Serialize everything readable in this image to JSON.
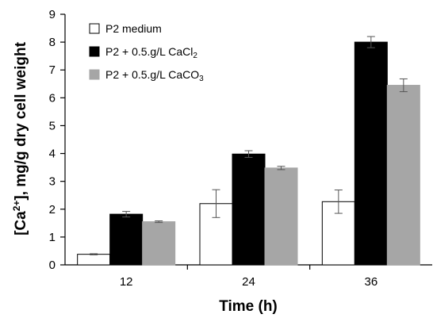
{
  "chart_data": {
    "type": "bar",
    "categories": [
      "12",
      "24",
      "36"
    ],
    "xlabel": "Time (h)",
    "ylabel": "[Ca2+], mg/g dry cell weight",
    "ylim": [
      0,
      9
    ],
    "yticks": [
      0,
      1,
      2,
      3,
      4,
      5,
      6,
      7,
      8,
      9
    ],
    "grid": false,
    "legend": "top-left",
    "series": [
      {
        "name": "P2 medium",
        "color": "#ffffff",
        "values": [
          0.38,
          2.2,
          2.27
        ],
        "errors": [
          0.02,
          0.5,
          0.42
        ]
      },
      {
        "name": "P2 + 0.5.g/L CaCl2",
        "color": "#000000",
        "values": [
          1.82,
          3.98,
          8.0
        ],
        "errors": [
          0.1,
          0.12,
          0.2
        ]
      },
      {
        "name": "P2 + 0.5.g/L CaCO3",
        "color": "#a6a6a6",
        "values": [
          1.55,
          3.48,
          6.45
        ],
        "errors": [
          0.03,
          0.06,
          0.23
        ]
      }
    ]
  }
}
